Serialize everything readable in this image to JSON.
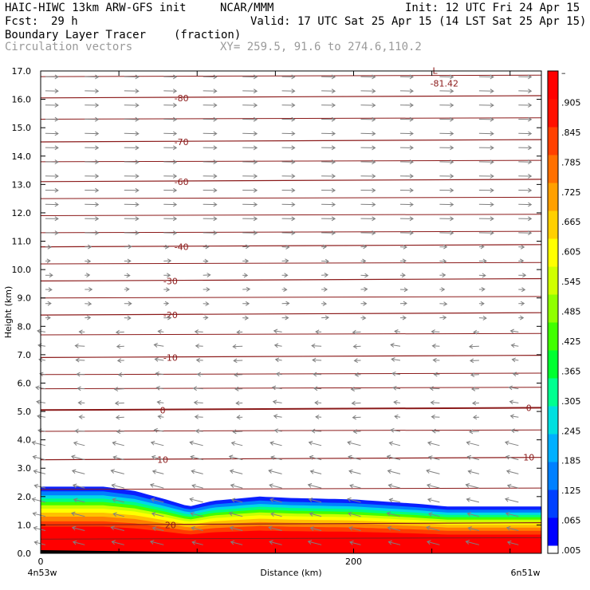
{
  "header": {
    "model": "HAIC-HIWC 13km ARW-GFS init",
    "org": "NCAR/MMM",
    "init": "Init: 12 UTC Fri 24 Apr 15",
    "fcst_label": "Fcst:",
    "fcst_value": "29 h",
    "valid": "Valid: 17 UTC Sat 25 Apr 15 (14 LST Sat 25 Apr 15)",
    "field": "Boundary Layer Tracer",
    "units": "(fraction)",
    "vectors": "Circulation vectors",
    "xy": "XY= 259.5, 91.6 to 274.6,110.2"
  },
  "chart_data": {
    "type": "heatmap",
    "xlabel": "Distance (km)",
    "ylabel": "Height (km)",
    "xlim": [
      0,
      320
    ],
    "ylim": [
      0,
      17
    ],
    "x_ticks": [
      0,
      200
    ],
    "x_tick_labels": [
      "0",
      "200"
    ],
    "x_end_labels": [
      "4n53w",
      "6n51w"
    ],
    "y_ticks": [
      0,
      1,
      2,
      3,
      4,
      5,
      6,
      7,
      8,
      9,
      10,
      11,
      12,
      13,
      14,
      15,
      16,
      17
    ],
    "y_tick_labels": [
      "0.0",
      "1.0",
      "2.0",
      "3.0",
      "4.0",
      "5.0",
      "6.0",
      "7.0",
      "8.0",
      "9.0",
      "10.0",
      "11.0",
      "12.0",
      "13.0",
      "14.0",
      "15.0",
      "16.0",
      "17.0"
    ],
    "tracer_top_km": [
      {
        "x": 0,
        "h": 2.35
      },
      {
        "x": 40,
        "h": 2.35
      },
      {
        "x": 60,
        "h": 2.2
      },
      {
        "x": 80,
        "h": 1.9
      },
      {
        "x": 95,
        "h": 1.65
      },
      {
        "x": 110,
        "h": 1.85
      },
      {
        "x": 140,
        "h": 2.0
      },
      {
        "x": 160,
        "h": 1.95
      },
      {
        "x": 200,
        "h": 1.9
      },
      {
        "x": 240,
        "h": 1.75
      },
      {
        "x": 260,
        "h": 1.65
      },
      {
        "x": 320,
        "h": 1.65
      }
    ],
    "isotherms_C": [
      {
        "label": "-80",
        "h": 16.05
      },
      {
        "label": "-70",
        "h": 14.5
      },
      {
        "label": "-60",
        "h": 13.1
      },
      {
        "label": "-40",
        "h": 10.8
      },
      {
        "label": "-30",
        "h": 9.6
      },
      {
        "label": "-20",
        "h": 8.4
      },
      {
        "label": "-10",
        "h": 6.9
      },
      {
        "label": "0",
        "h": 5.05
      },
      {
        "label": "10",
        "h": 3.3
      },
      {
        "label": "20",
        "h": 1.0
      }
    ],
    "extra_levels_km": [
      16.8,
      15.3,
      13.8,
      12.5,
      11.9,
      11.3,
      10.2,
      9.0,
      7.7,
      6.3,
      5.8,
      4.3,
      2.25,
      0.5
    ],
    "low_marker": {
      "label": "L",
      "value": "-81.42"
    },
    "colorbar_labels": [
      ".005",
      ".065",
      ".125",
      ".185",
      ".245",
      ".305",
      ".365",
      ".425",
      ".485",
      ".545",
      ".605",
      ".665",
      ".725",
      ".785",
      ".845",
      ".905",
      "–"
    ],
    "colorbar_colors": [
      "#0000ff",
      "#0040ff",
      "#0080ff",
      "#00b0ff",
      "#00e0e0",
      "#00ff90",
      "#00ff30",
      "#40ff00",
      "#90ff00",
      "#d0ff00",
      "#ffff00",
      "#ffd000",
      "#ffa000",
      "#ff7000",
      "#ff4000",
      "#ff1000",
      "#ff0000"
    ]
  },
  "colors": {
    "contour": "#8b1a1a",
    "vector": "#808080",
    "text_gray": "#9a9a9a"
  }
}
